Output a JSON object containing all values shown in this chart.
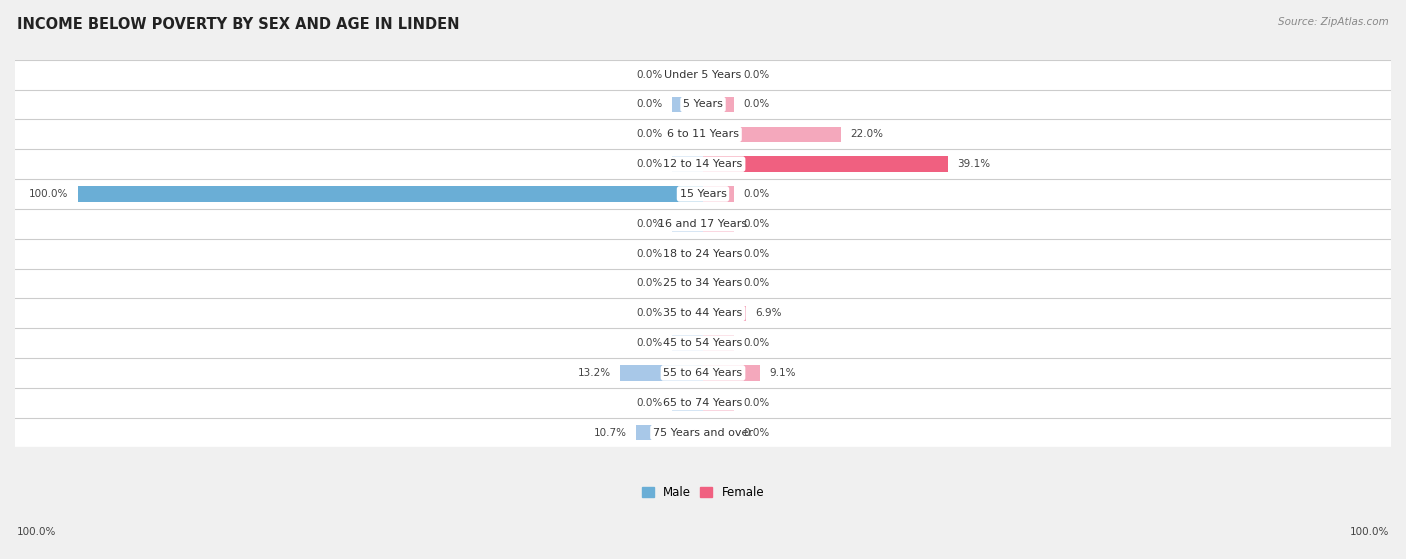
{
  "title": "INCOME BELOW POVERTY BY SEX AND AGE IN LINDEN",
  "source": "Source: ZipAtlas.com",
  "categories": [
    "Under 5 Years",
    "5 Years",
    "6 to 11 Years",
    "12 to 14 Years",
    "15 Years",
    "16 and 17 Years",
    "18 to 24 Years",
    "25 to 34 Years",
    "35 to 44 Years",
    "45 to 54 Years",
    "55 to 64 Years",
    "65 to 74 Years",
    "75 Years and over"
  ],
  "male_values": [
    0.0,
    0.0,
    0.0,
    0.0,
    100.0,
    0.0,
    0.0,
    0.0,
    0.0,
    0.0,
    13.2,
    0.0,
    10.7
  ],
  "female_values": [
    0.0,
    0.0,
    22.0,
    39.1,
    0.0,
    0.0,
    0.0,
    0.0,
    6.9,
    0.0,
    9.1,
    0.0,
    0.0
  ],
  "male_color": "#A8C8E8",
  "female_color": "#F4A8BC",
  "male_color_strong": "#6AAED6",
  "female_color_strong": "#F06080",
  "background_color": "#f0f0f0",
  "xlim": 110,
  "bar_height": 0.52,
  "stub_size": 5.0,
  "title_fontsize": 10.5,
  "label_fontsize": 8.0,
  "value_fontsize": 7.5,
  "legend_fontsize": 8.5,
  "source_fontsize": 7.5
}
